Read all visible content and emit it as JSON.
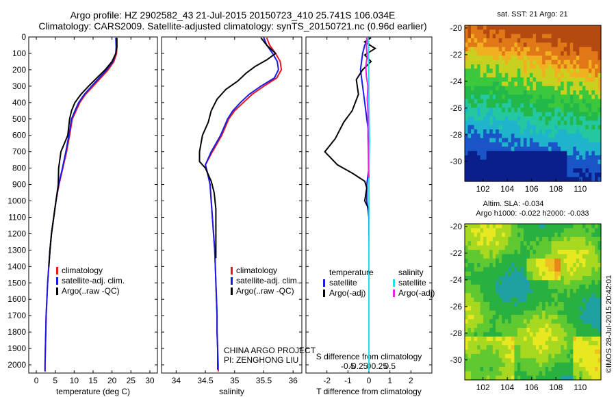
{
  "header": {
    "line1": "Argo profile: HZ 2902582_43 21-Jul-2015 20150723_410 25.741S 106.034E",
    "line2": "Climatology: CARS2009. Satellite-adjusted climatology: synTS_20150721.nc (0.96d earlier)"
  },
  "colors": {
    "climatology": "#e8161a",
    "satellite_adj": "#1a1ae8",
    "argo": "#000000",
    "satellite_sal": "#22e0f0",
    "argo_sal": "#f020e0"
  },
  "credits": {
    "line1": "CHINA ARGO PROJECT",
    "line2": "PI: ZENGHONG LIU"
  },
  "side_stamp": "©IMOS 28-Jul-2015 20:42:01",
  "chart_data": [
    {
      "type": "line",
      "panel": "temperature",
      "xlabel": "temperature (deg C)",
      "ylabel": "",
      "xlim": [
        -2,
        32
      ],
      "ylim": [
        2050,
        0
      ],
      "xticks": [
        0,
        5,
        10,
        15,
        20,
        25,
        30
      ],
      "yticks": [
        0,
        100,
        200,
        300,
        400,
        500,
        600,
        700,
        800,
        900,
        1000,
        1100,
        1200,
        1300,
        1400,
        1500,
        1600,
        1700,
        1800,
        1900,
        2000
      ],
      "legend": [
        "climatology",
        "satellite-adj. clim.",
        "Argo(..raw -QC)"
      ],
      "series": [
        {
          "name": "climatology",
          "color": "#e8161a",
          "points": [
            [
              21.2,
              5
            ],
            [
              21.3,
              60
            ],
            [
              21.2,
              100
            ],
            [
              20.5,
              150
            ],
            [
              19.0,
              200
            ],
            [
              17.0,
              250
            ],
            [
              15.0,
              300
            ],
            [
              13.0,
              350
            ],
            [
              11.5,
              400
            ],
            [
              10.5,
              450
            ],
            [
              9.5,
              500
            ],
            [
              8.8,
              600
            ],
            [
              8.0,
              700
            ],
            [
              7.0,
              800
            ],
            [
              6.0,
              900
            ],
            [
              5.2,
              1000
            ],
            [
              4.6,
              1100
            ],
            [
              4.0,
              1200
            ],
            [
              3.6,
              1300
            ],
            [
              3.3,
              1400
            ],
            [
              3.0,
              1500
            ],
            [
              2.8,
              1600
            ],
            [
              2.6,
              1700
            ],
            [
              2.5,
              1800
            ],
            [
              2.4,
              1900
            ],
            [
              2.3,
              2000
            ],
            [
              2.3,
              2040
            ]
          ]
        },
        {
          "name": "satellite-adj. clim.",
          "color": "#1a1ae8",
          "points": [
            [
              21.0,
              5
            ],
            [
              21.1,
              60
            ],
            [
              21.0,
              100
            ],
            [
              20.2,
              150
            ],
            [
              18.6,
              200
            ],
            [
              16.6,
              250
            ],
            [
              14.6,
              300
            ],
            [
              12.7,
              350
            ],
            [
              11.2,
              400
            ],
            [
              10.2,
              450
            ],
            [
              9.3,
              500
            ],
            [
              8.6,
              600
            ],
            [
              7.8,
              700
            ],
            [
              6.9,
              800
            ],
            [
              5.9,
              900
            ],
            [
              5.2,
              1000
            ],
            [
              4.6,
              1100
            ],
            [
              4.0,
              1200
            ],
            [
              3.6,
              1300
            ],
            [
              3.3,
              1400
            ],
            [
              3.0,
              1500
            ],
            [
              2.8,
              1600
            ],
            [
              2.6,
              1700
            ],
            [
              2.5,
              1800
            ],
            [
              2.4,
              1900
            ],
            [
              2.3,
              2000
            ],
            [
              2.3,
              2040
            ]
          ]
        },
        {
          "name": "Argo(..raw -QC)",
          "color": "#000000",
          "points": [
            [
              21.3,
              5
            ],
            [
              21.3,
              60
            ],
            [
              21.0,
              100
            ],
            [
              20.0,
              150
            ],
            [
              18.2,
              200
            ],
            [
              16.0,
              250
            ],
            [
              13.8,
              300
            ],
            [
              11.8,
              350
            ],
            [
              10.2,
              400
            ],
            [
              9.3,
              450
            ],
            [
              8.8,
              500
            ],
            [
              8.3,
              600
            ],
            [
              6.5,
              700
            ],
            [
              5.9,
              800
            ],
            [
              5.8,
              900
            ],
            [
              5.2,
              1000
            ],
            [
              4.6,
              1100
            ],
            [
              4.0,
              1200
            ],
            [
              3.6,
              1300
            ],
            [
              3.3,
              1400
            ]
          ]
        }
      ]
    },
    {
      "type": "line",
      "panel": "salinity",
      "xlabel": "salinity",
      "ylabel": "",
      "xlim": [
        33.75,
        36.15
      ],
      "ylim": [
        2050,
        0
      ],
      "xticks": [
        34,
        34.5,
        35,
        35.5,
        36
      ],
      "legend": [
        "climatology",
        "satellite-adj. clim.",
        "Argo(..raw -QC)"
      ],
      "series": [
        {
          "name": "climatology",
          "color": "#e8161a",
          "points": [
            [
              35.55,
              5
            ],
            [
              35.6,
              50
            ],
            [
              35.7,
              100
            ],
            [
              35.78,
              150
            ],
            [
              35.8,
              200
            ],
            [
              35.72,
              250
            ],
            [
              35.5,
              300
            ],
            [
              35.3,
              350
            ],
            [
              35.15,
              400
            ],
            [
              35.0,
              450
            ],
            [
              34.9,
              500
            ],
            [
              34.78,
              600
            ],
            [
              34.62,
              700
            ],
            [
              34.5,
              780
            ],
            [
              34.55,
              850
            ],
            [
              34.58,
              900
            ],
            [
              34.6,
              1000
            ],
            [
              34.62,
              1100
            ],
            [
              34.64,
              1200
            ],
            [
              34.66,
              1300
            ],
            [
              34.67,
              1400
            ],
            [
              34.68,
              1500
            ],
            [
              34.69,
              1600
            ],
            [
              34.7,
              1700
            ],
            [
              34.7,
              1800
            ],
            [
              34.71,
              1900
            ],
            [
              34.72,
              2000
            ],
            [
              34.72,
              2040
            ]
          ]
        },
        {
          "name": "satellite-adj. clim.",
          "color": "#1a1ae8",
          "points": [
            [
              35.5,
              5
            ],
            [
              35.55,
              50
            ],
            [
              35.65,
              100
            ],
            [
              35.73,
              150
            ],
            [
              35.75,
              200
            ],
            [
              35.68,
              250
            ],
            [
              35.45,
              300
            ],
            [
              35.25,
              350
            ],
            [
              35.1,
              400
            ],
            [
              34.97,
              450
            ],
            [
              34.88,
              500
            ],
            [
              34.76,
              600
            ],
            [
              34.6,
              700
            ],
            [
              34.5,
              780
            ],
            [
              34.55,
              850
            ],
            [
              34.58,
              900
            ],
            [
              34.6,
              1000
            ],
            [
              34.62,
              1100
            ],
            [
              34.64,
              1200
            ],
            [
              34.66,
              1300
            ],
            [
              34.67,
              1400
            ],
            [
              34.68,
              1500
            ],
            [
              34.69,
              1600
            ],
            [
              34.7,
              1700
            ],
            [
              34.7,
              1800
            ],
            [
              34.71,
              1900
            ],
            [
              34.71,
              2000
            ],
            [
              34.71,
              2030
            ]
          ]
        },
        {
          "name": "Argo(..raw -QC)",
          "color": "#000000",
          "points": [
            [
              35.45,
              5
            ],
            [
              35.55,
              50
            ],
            [
              35.7,
              100
            ],
            [
              35.55,
              140
            ],
            [
              35.35,
              180
            ],
            [
              35.2,
              220
            ],
            [
              35.05,
              270
            ],
            [
              34.85,
              320
            ],
            [
              34.7,
              380
            ],
            [
              34.6,
              450
            ],
            [
              34.55,
              520
            ],
            [
              34.45,
              600
            ],
            [
              34.4,
              700
            ],
            [
              34.4,
              760
            ],
            [
              34.5,
              800
            ],
            [
              34.6,
              880
            ],
            [
              34.65,
              950
            ],
            [
              34.68,
              1050
            ],
            [
              34.68,
              1150
            ],
            [
              34.68,
              1250
            ],
            [
              34.68,
              1350
            ]
          ]
        }
      ]
    },
    {
      "type": "line",
      "panel": "difference",
      "xlabel": "T difference from climatology",
      "top_xlabel": "S difference from climatology",
      "xlim": [
        -3,
        3
      ],
      "ylim": [
        2050,
        0
      ],
      "xticks": [
        -2,
        -1,
        0,
        1,
        2
      ],
      "top_xticks": [
        "-0.5",
        "-0.25",
        "0",
        "0.25",
        "0.5"
      ],
      "legend_temperature": {
        "title": "temperature",
        "items": [
          "satellite",
          "Argo(-adj)"
        ]
      },
      "legend_salinity": {
        "title": "salinity",
        "items": [
          "satellite",
          "Argo(-adj)"
        ]
      },
      "series": [
        {
          "name": "T satellite",
          "color": "#1a1ae8",
          "points": [
            [
              0.0,
              5
            ],
            [
              -0.2,
              50
            ],
            [
              -0.3,
              100
            ],
            [
              -0.4,
              200
            ],
            [
              -0.3,
              300
            ],
            [
              -0.2,
              400
            ],
            [
              -0.1,
              500
            ],
            [
              0.0,
              600
            ],
            [
              0.0,
              700
            ],
            [
              0.0,
              800
            ],
            [
              -0.1,
              900
            ],
            [
              -0.1,
              1000
            ],
            [
              0.0,
              1100
            ],
            [
              0.0,
              1200
            ],
            [
              0.0,
              1300
            ],
            [
              0.0,
              1400
            ],
            [
              0.0,
              1500
            ],
            [
              0.0,
              1600
            ],
            [
              0.0,
              1700
            ],
            [
              0.0,
              1800
            ],
            [
              0.0,
              1900
            ],
            [
              0.0,
              2000
            ],
            [
              0.0,
              2040
            ]
          ]
        },
        {
          "name": "T Argo(-adj)",
          "color": "#000000",
          "points": [
            [
              0.1,
              5
            ],
            [
              -0.2,
              30
            ],
            [
              0.3,
              70
            ],
            [
              -0.2,
              110
            ],
            [
              0.1,
              150
            ],
            [
              -0.3,
              200
            ],
            [
              -0.6,
              260
            ],
            [
              -0.5,
              350
            ],
            [
              -0.8,
              450
            ],
            [
              -1.2,
              520
            ],
            [
              -1.6,
              620
            ],
            [
              -2.1,
              700
            ],
            [
              -1.5,
              780
            ],
            [
              -0.8,
              830
            ],
            [
              -0.2,
              880
            ],
            [
              -0.1,
              920
            ],
            [
              -0.2,
              1000
            ],
            [
              0.0,
              1050
            ]
          ]
        },
        {
          "name": "S satellite",
          "color": "#22e0f0",
          "points": [
            [
              -0.04,
              5
            ],
            [
              -0.03,
              50
            ],
            [
              -0.02,
              100
            ],
            [
              -0.01,
              200
            ],
            [
              0.0,
              400
            ],
            [
              0.02,
              550
            ],
            [
              0.03,
              650
            ],
            [
              0.01,
              750
            ],
            [
              0.0,
              900
            ],
            [
              0.01,
              1100
            ],
            [
              0.0,
              1300
            ],
            [
              0.0,
              1500
            ],
            [
              0.0,
              1700
            ],
            [
              0.0,
              1900
            ],
            [
              0.0,
              2040
            ]
          ]
        },
        {
          "name": "S Argo(-adj)",
          "color": "#f020e0",
          "points": [
            [
              -0.1,
              5
            ],
            [
              -0.12,
              60
            ],
            [
              -0.08,
              120
            ],
            [
              -0.15,
              180
            ],
            [
              -0.12,
              240
            ],
            [
              -0.05,
              300
            ],
            [
              -0.08,
              380
            ],
            [
              -0.05,
              450
            ],
            [
              -0.04,
              520
            ],
            [
              -0.05,
              600
            ],
            [
              -0.03,
              700
            ],
            [
              -0.02,
              800
            ],
            [
              0.0,
              860
            ]
          ]
        }
      ]
    },
    {
      "type": "heatmap",
      "panel": "sat_sst",
      "title": "sat. SST: 21  Argo: 21",
      "xticks": [
        102,
        104,
        106,
        108,
        110
      ],
      "yticks": [
        -20,
        -22,
        -24,
        -26,
        -28,
        -30
      ],
      "xlim": [
        100.5,
        111.7
      ],
      "ylim": [
        -31.5,
        -19.8
      ]
    },
    {
      "type": "heatmap",
      "panel": "altim_sla",
      "title": "Altim. SLA: -0.034",
      "subtitle": "Argo h1000: -0.022 h2000: -0.033",
      "xticks": [
        102,
        104,
        106,
        108,
        110
      ],
      "yticks": [
        -20,
        -22,
        -24,
        -26,
        -28,
        -30
      ],
      "xlim": [
        100.5,
        111.7
      ],
      "ylim": [
        -31.5,
        -19.8
      ]
    }
  ]
}
